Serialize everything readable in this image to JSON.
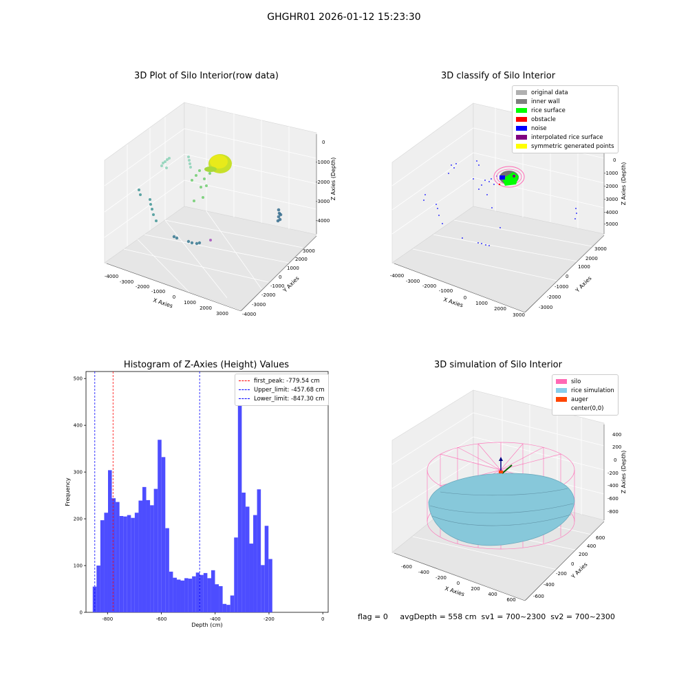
{
  "suptitle": "GHGHR01 2026-01-12 15:23:30",
  "panels": {
    "raw": {
      "title": "3D Plot of Silo Interior(row data)",
      "xlabel": "X Axies",
      "ylabel": "Y Axies",
      "zlabel": "Z Axies (Depth)",
      "xticks": [
        "-4000",
        "-3000",
        "-2000",
        "-1000",
        "0",
        "1000",
        "2000",
        "3000"
      ],
      "yticks": [
        "-4000",
        "-3000",
        "-2000",
        "-1000",
        "0",
        "1000",
        "2000",
        "3000"
      ],
      "zticks": [
        "0",
        "-1000",
        "-2000",
        "-3000",
        "-4000"
      ]
    },
    "classify": {
      "title": "3D classify of Silo Interior",
      "xlabel": "X Axies",
      "ylabel": "Y Axies",
      "zlabel": "Z Axies (Depth)",
      "xticks": [
        "-4000",
        "-3000",
        "-2000",
        "-1000",
        "0",
        "1000",
        "2000",
        "3000"
      ],
      "yticks": [
        "-3000",
        "-2000",
        "-1000",
        "0",
        "1000",
        "2000",
        "3000"
      ],
      "zticks": [
        "1000",
        "0",
        "-1000",
        "-2000",
        "-3000",
        "-4000",
        "-5000"
      ],
      "legend": [
        {
          "label": "original data",
          "color": "#b0b0b0"
        },
        {
          "label": "inner wall",
          "color": "#808080"
        },
        {
          "label": "rice surface",
          "color": "#00ff00"
        },
        {
          "label": "obstacle",
          "color": "#ff0000"
        },
        {
          "label": "noise",
          "color": "#0000ff"
        },
        {
          "label": "interpolated rice surface",
          "color": "#800080"
        },
        {
          "label": "symmetric generated points",
          "color": "#ffff00"
        }
      ]
    },
    "histogram": {
      "title": "Histogram of Z-Axies (Height) Values",
      "xlabel": "Depth (cm)",
      "ylabel": "Frequency",
      "xticks": [
        "-800",
        "-600",
        "-400",
        "-200",
        "0"
      ],
      "yticks": [
        "0",
        "100",
        "200",
        "300",
        "400",
        "500"
      ],
      "legend": [
        {
          "label": "first_peak: -779.54 cm",
          "color": "#ff0000"
        },
        {
          "label": "Upper_limit: -457.68 cm",
          "color": "#0000ff"
        },
        {
          "label": "Lower_limit: -847.30 cm",
          "color": "#0000ff"
        }
      ]
    },
    "simulation": {
      "title": "3D simulation of Silo Interior",
      "xlabel": "X Axies",
      "ylabel": "Y Axies",
      "zlabel": "Z Axies (Depth)",
      "xticks": [
        "-600",
        "-400",
        "-200",
        "0",
        "200",
        "400",
        "600"
      ],
      "yticks": [
        "-600",
        "-400",
        "-200",
        "0",
        "200",
        "400",
        "600"
      ],
      "zticks": [
        "400",
        "200",
        "0",
        "-200",
        "-400",
        "-600",
        "-800"
      ],
      "legend": [
        {
          "label": "silo",
          "color": "#ff69b4"
        },
        {
          "label": "rice simulation",
          "color": "#87ceeb"
        },
        {
          "label": "auger",
          "color": "#ff4500"
        },
        {
          "label": "center(0,0)",
          "color": ""
        }
      ]
    }
  },
  "footer": "flag = 0     avgDepth = 558 cm  sv1 = 700~2300  sv2 = 700~2300",
  "chart_data": [
    {
      "type": "scatter",
      "title": "3D Plot of Silo Interior(row data)",
      "xlabel": "X Axies",
      "ylabel": "Y Axies",
      "zlabel": "Z Axies (Depth)",
      "xlim": [
        -4500,
        3500
      ],
      "ylim": [
        -4500,
        3500
      ],
      "zlim": [
        -4500,
        200
      ]
    },
    {
      "type": "scatter",
      "title": "3D classify of Silo Interior",
      "xlabel": "X Axies",
      "ylabel": "Y Axies",
      "zlabel": "Z Axies (Depth)",
      "series": [
        {
          "name": "original data"
        },
        {
          "name": "inner wall"
        },
        {
          "name": "rice surface"
        },
        {
          "name": "obstacle"
        },
        {
          "name": "noise"
        },
        {
          "name": "interpolated rice surface"
        },
        {
          "name": "symmetric generated points"
        }
      ],
      "legend": "top-right"
    },
    {
      "type": "bar",
      "title": "Histogram of Z-Axies (Height) Values",
      "xlabel": "Depth (cm)",
      "ylabel": "Frequency",
      "xlim": [
        -880,
        20
      ],
      "ylim": [
        0,
        515
      ],
      "bin_start": -855,
      "bin_width": 14.2,
      "values": [
        55,
        100,
        197,
        213,
        304,
        244,
        236,
        206,
        205,
        208,
        202,
        213,
        239,
        268,
        240,
        229,
        264,
        369,
        332,
        180,
        87,
        74,
        70,
        68,
        73,
        72,
        77,
        85,
        80,
        84,
        73,
        90,
        60,
        56,
        18,
        16,
        36,
        160,
        485,
        256,
        226,
        147,
        208,
        263,
        101,
        185,
        114
      ],
      "lines": [
        {
          "label": "first_peak: -779.54 cm",
          "x": -779.54,
          "color": "#ff0000"
        },
        {
          "label": "Upper_limit: -457.68 cm",
          "x": -457.68,
          "color": "#0000ff"
        },
        {
          "label": "Lower_limit: -847.30 cm",
          "x": -847.3,
          "color": "#0000ff"
        }
      ],
      "legend": "top-right"
    },
    {
      "type": "scatter",
      "title": "3D simulation of Silo Interior",
      "xlabel": "X Axies",
      "ylabel": "Y Axies",
      "zlabel": "Z Axies (Depth)",
      "series": [
        {
          "name": "silo"
        },
        {
          "name": "rice simulation"
        },
        {
          "name": "auger"
        },
        {
          "name": "center(0,0)"
        }
      ],
      "legend": "top-right"
    }
  ]
}
